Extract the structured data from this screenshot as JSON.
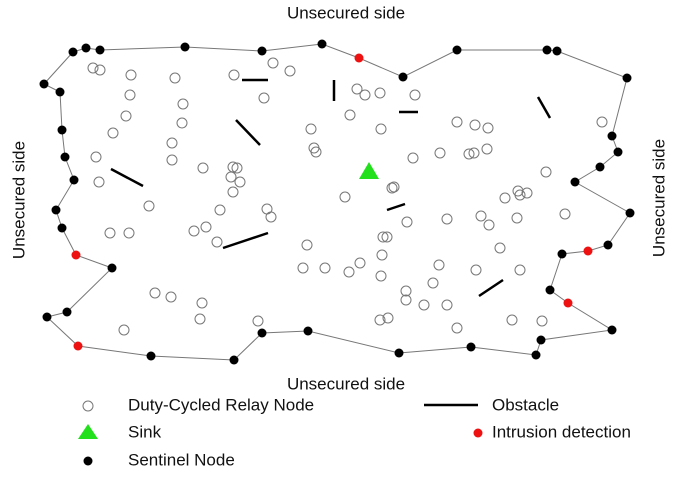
{
  "sides": {
    "top": "Unsecured side",
    "bottom": "Unsecured side",
    "left": "Unsecured side",
    "right": "Unsecured side"
  },
  "legend": {
    "relay": "Duty-Cycled Relay Node",
    "obstacle": "Obstacle",
    "sink": "Sink",
    "intrusion": "Intrusion detection",
    "sentinel": "Sentinel Node"
  }
}
